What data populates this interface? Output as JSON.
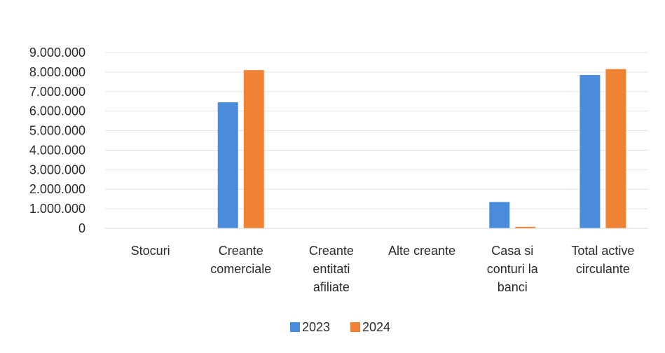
{
  "chart_data": {
    "type": "bar",
    "title": "",
    "xlabel": "",
    "ylabel": "",
    "categories": [
      [
        "Stocuri"
      ],
      [
        "Creante",
        "comerciale"
      ],
      [
        "Creante",
        "entitati",
        "afiliate"
      ],
      [
        "Alte creante"
      ],
      [
        "Casa si",
        "conturi la",
        "banci"
      ],
      [
        "Total active",
        "circulante"
      ]
    ],
    "series": [
      {
        "name": "2023",
        "color": "#4a8bdc",
        "values": [
          0,
          6450000,
          0,
          0,
          1350000,
          7850000
        ]
      },
      {
        "name": "2024",
        "color": "#f08234",
        "values": [
          0,
          8100000,
          0,
          0,
          80000,
          8150000
        ]
      }
    ],
    "ylim": [
      0,
      9000000
    ],
    "yticks": [
      0,
      1000000,
      2000000,
      3000000,
      4000000,
      5000000,
      6000000,
      7000000,
      8000000,
      9000000
    ],
    "ytick_labels": [
      "0",
      "1.000.000",
      "2.000.000",
      "3.000.000",
      "4.000.000",
      "5.000.000",
      "6.000.000",
      "7.000.000",
      "8.000.000",
      "9.000.000"
    ],
    "grid": true,
    "legend_position": "bottom"
  }
}
